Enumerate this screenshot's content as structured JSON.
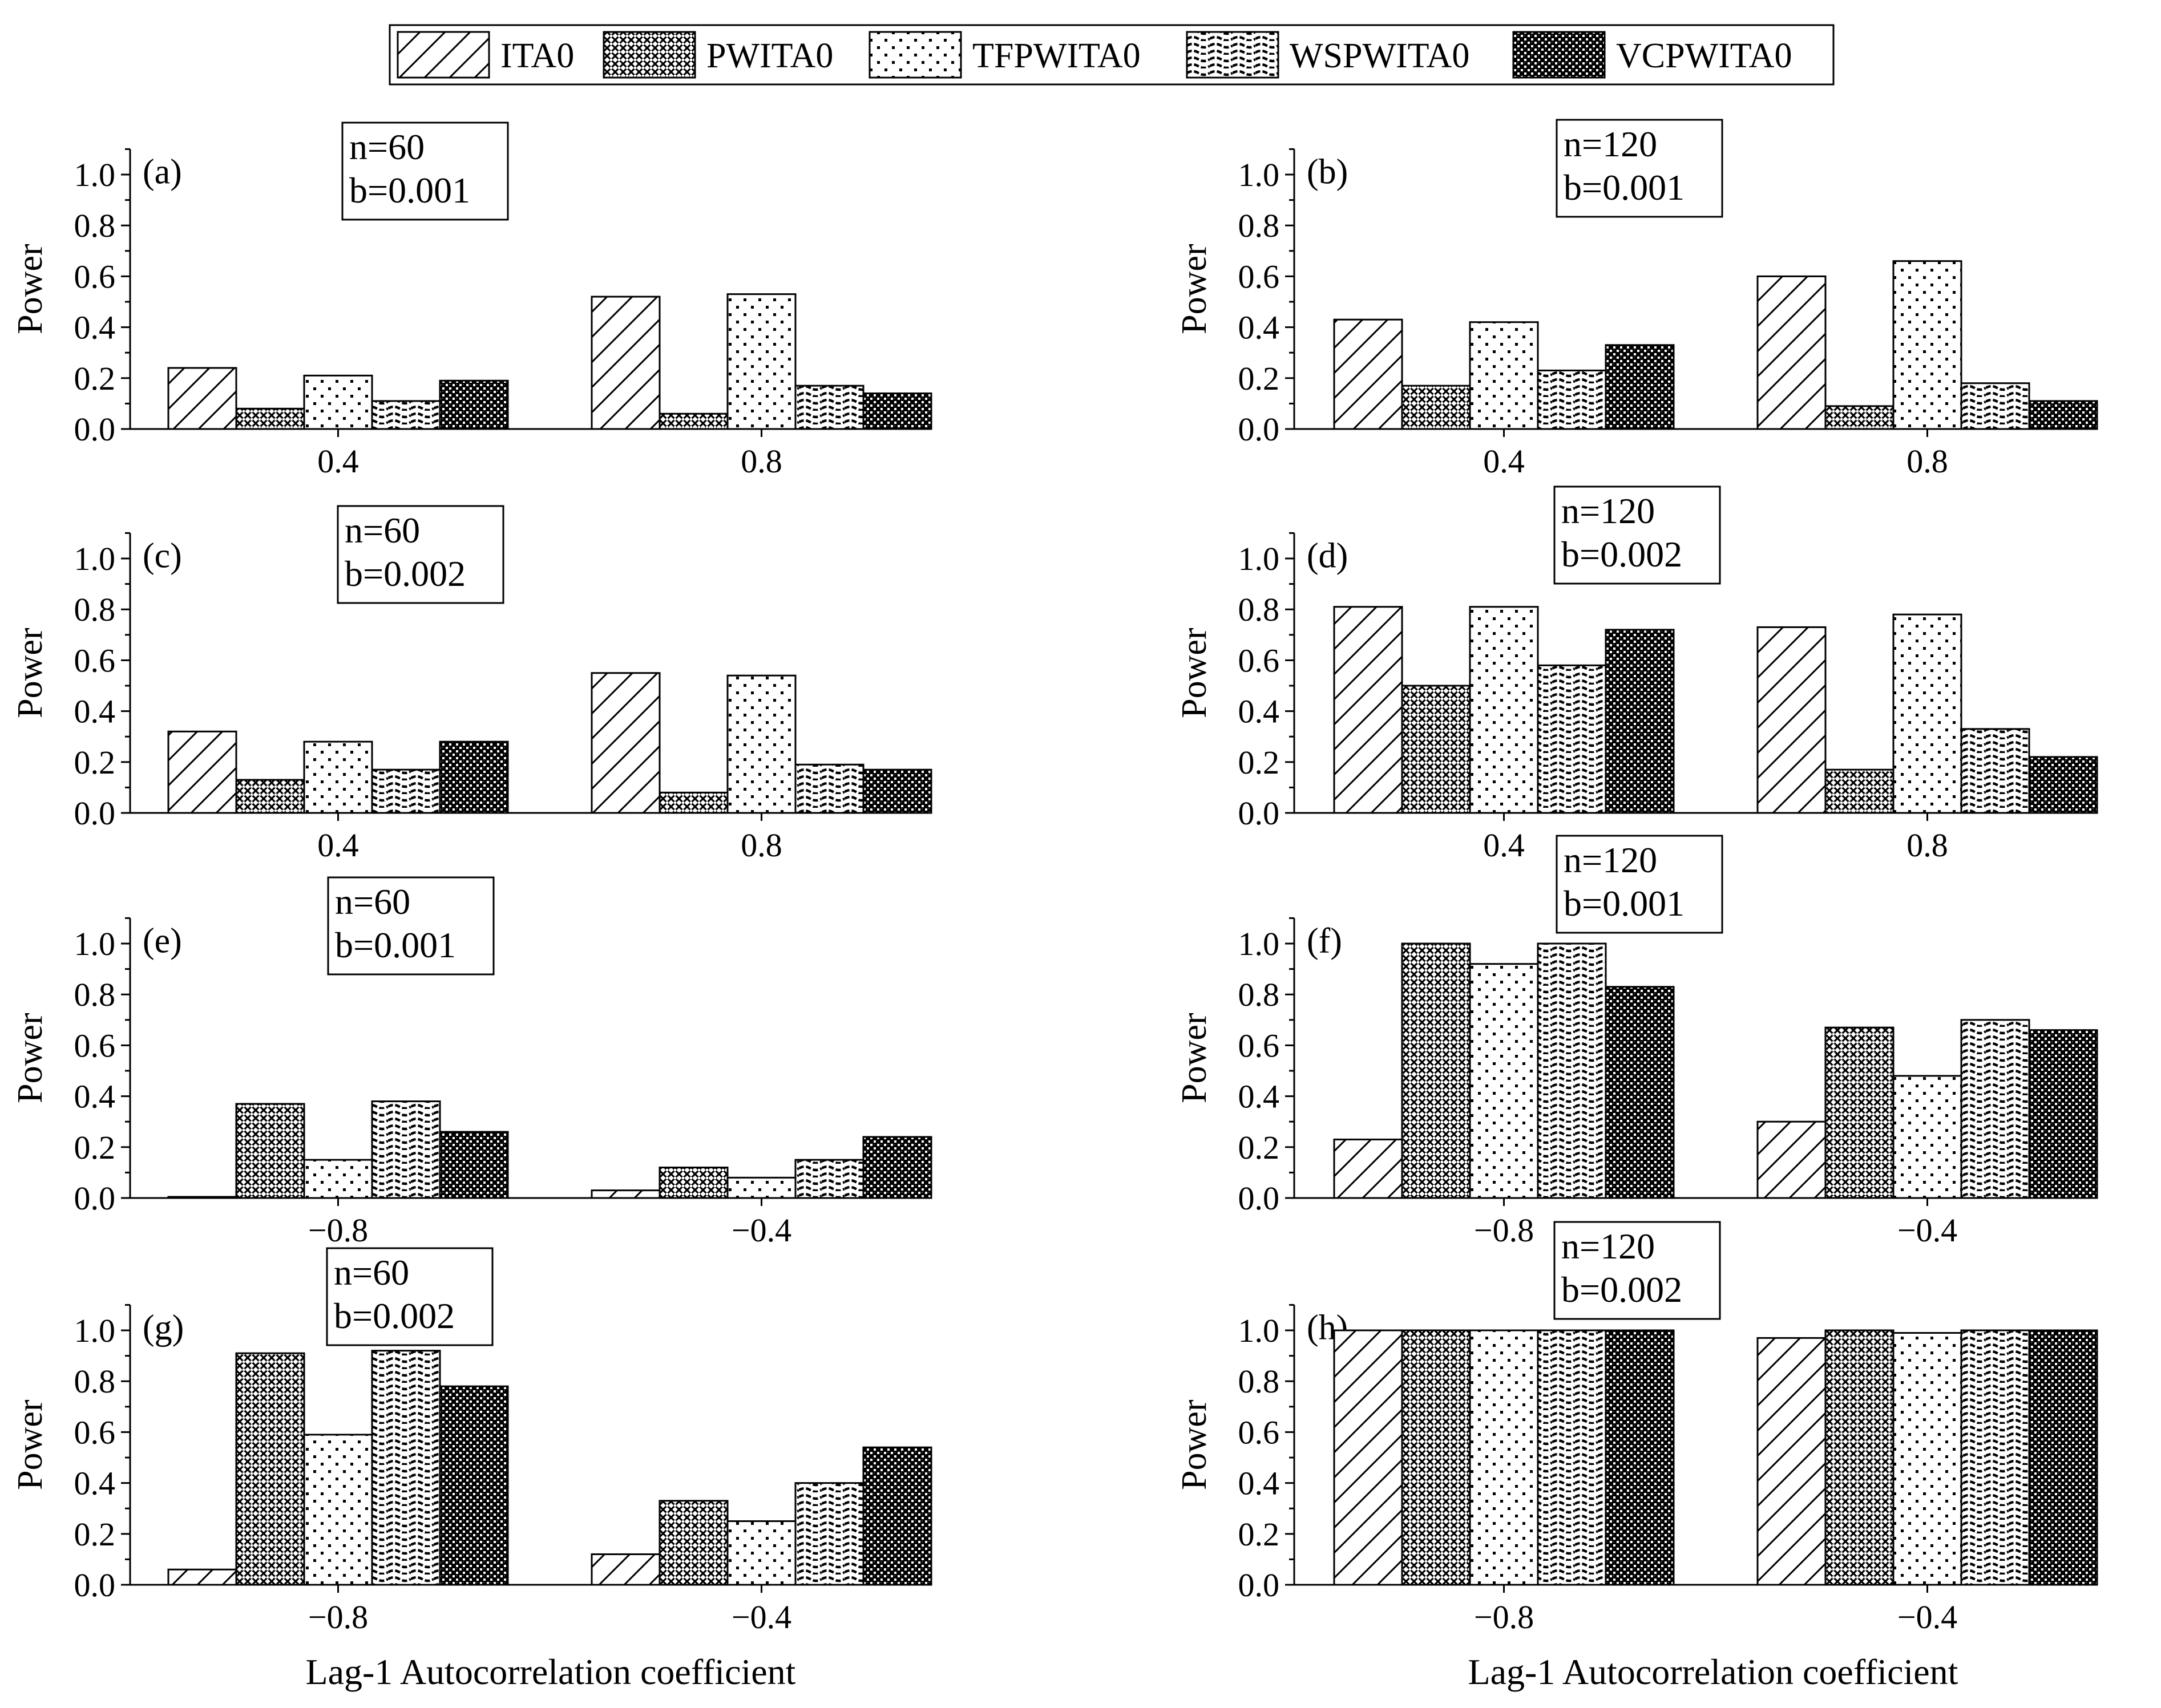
{
  "figure": {
    "legend": [
      {
        "name": "ITA0",
        "pattern": "hatch"
      },
      {
        "name": "PWITA0",
        "pattern": "dense"
      },
      {
        "name": "TFPWITA0",
        "pattern": "dots"
      },
      {
        "name": "WSPWITA0",
        "pattern": "waves"
      },
      {
        "name": "VCPWITA0",
        "pattern": "check"
      }
    ],
    "x_axis_title": "Lag-1 Autocorrelation coefficient",
    "y_axis_title": "Power",
    "colors": {
      "stroke": "#000000",
      "background": "#ffffff"
    }
  },
  "chart_data": [
    {
      "panel": "(a)",
      "type": "bar",
      "info": [
        "n=60",
        "b=0.001"
      ],
      "categories": [
        "0.4",
        "0.8"
      ],
      "ylim": [
        0,
        1.1
      ],
      "yticks": [
        "0.0",
        "0.2",
        "0.4",
        "0.6",
        "0.8",
        "1.0"
      ],
      "ylabel": "Power",
      "series": [
        {
          "name": "ITA0",
          "values": [
            0.24,
            0.52
          ]
        },
        {
          "name": "PWITA0",
          "values": [
            0.08,
            0.06
          ]
        },
        {
          "name": "TFPWITA0",
          "values": [
            0.21,
            0.53
          ]
        },
        {
          "name": "WSPWITA0",
          "values": [
            0.11,
            0.17
          ]
        },
        {
          "name": "VCPWITA0",
          "values": [
            0.19,
            0.14
          ]
        }
      ]
    },
    {
      "panel": "(b)",
      "type": "bar",
      "info": [
        "n=120",
        "b=0.001"
      ],
      "categories": [
        "0.4",
        "0.8"
      ],
      "ylim": [
        0,
        1.1
      ],
      "yticks": [
        "0.0",
        "0.2",
        "0.4",
        "0.6",
        "0.8",
        "1.0"
      ],
      "ylabel": "Power",
      "series": [
        {
          "name": "ITA0",
          "values": [
            0.43,
            0.6
          ]
        },
        {
          "name": "PWITA0",
          "values": [
            0.17,
            0.09
          ]
        },
        {
          "name": "TFPWITA0",
          "values": [
            0.42,
            0.66
          ]
        },
        {
          "name": "WSPWITA0",
          "values": [
            0.23,
            0.18
          ]
        },
        {
          "name": "VCPWITA0",
          "values": [
            0.33,
            0.11
          ]
        }
      ]
    },
    {
      "panel": "(c)",
      "type": "bar",
      "info": [
        "n=60",
        "b=0.002"
      ],
      "categories": [
        "0.4",
        "0.8"
      ],
      "ylim": [
        0,
        1.1
      ],
      "yticks": [
        "0.0",
        "0.2",
        "0.4",
        "0.6",
        "0.8",
        "1.0"
      ],
      "ylabel": "Power",
      "series": [
        {
          "name": "ITA0",
          "values": [
            0.32,
            0.55
          ]
        },
        {
          "name": "PWITA0",
          "values": [
            0.13,
            0.08
          ]
        },
        {
          "name": "TFPWITA0",
          "values": [
            0.28,
            0.54
          ]
        },
        {
          "name": "WSPWITA0",
          "values": [
            0.17,
            0.19
          ]
        },
        {
          "name": "VCPWITA0",
          "values": [
            0.28,
            0.17
          ]
        }
      ]
    },
    {
      "panel": "(d)",
      "type": "bar",
      "info": [
        "n=120",
        "b=0.002"
      ],
      "categories": [
        "0.4",
        "0.8"
      ],
      "ylim": [
        0,
        1.1
      ],
      "yticks": [
        "0.0",
        "0.2",
        "0.4",
        "0.6",
        "0.8",
        "1.0"
      ],
      "ylabel": "Power",
      "series": [
        {
          "name": "ITA0",
          "values": [
            0.81,
            0.73
          ]
        },
        {
          "name": "PWITA0",
          "values": [
            0.5,
            0.17
          ]
        },
        {
          "name": "TFPWITA0",
          "values": [
            0.81,
            0.78
          ]
        },
        {
          "name": "WSPWITA0",
          "values": [
            0.58,
            0.33
          ]
        },
        {
          "name": "VCPWITA0",
          "values": [
            0.72,
            0.22
          ]
        }
      ]
    },
    {
      "panel": "(e)",
      "type": "bar",
      "info": [
        "n=60",
        "b=0.001"
      ],
      "categories": [
        "−0.8",
        "−0.4"
      ],
      "ylim": [
        0,
        1.1
      ],
      "yticks": [
        "0.0",
        "0.2",
        "0.4",
        "0.6",
        "0.8",
        "1.0"
      ],
      "ylabel": "Power",
      "series": [
        {
          "name": "ITA0",
          "values": [
            0.003,
            0.03
          ]
        },
        {
          "name": "PWITA0",
          "values": [
            0.37,
            0.12
          ]
        },
        {
          "name": "TFPWITA0",
          "values": [
            0.15,
            0.08
          ]
        },
        {
          "name": "WSPWITA0",
          "values": [
            0.38,
            0.15
          ]
        },
        {
          "name": "VCPWITA0",
          "values": [
            0.26,
            0.24
          ]
        }
      ]
    },
    {
      "panel": "(f)",
      "type": "bar",
      "info": [
        "n=120",
        "b=0.001"
      ],
      "categories": [
        "−0.8",
        "−0.4"
      ],
      "ylim": [
        0,
        1.1
      ],
      "yticks": [
        "0.0",
        "0.2",
        "0.4",
        "0.6",
        "0.8",
        "1.0"
      ],
      "ylabel": "Power",
      "series": [
        {
          "name": "ITA0",
          "values": [
            0.23,
            0.3
          ]
        },
        {
          "name": "PWITA0",
          "values": [
            1.0,
            0.67
          ]
        },
        {
          "name": "TFPWITA0",
          "values": [
            0.92,
            0.48
          ]
        },
        {
          "name": "WSPWITA0",
          "values": [
            1.0,
            0.7
          ]
        },
        {
          "name": "VCPWITA0",
          "values": [
            0.83,
            0.66
          ]
        }
      ]
    },
    {
      "panel": "(g)",
      "type": "bar",
      "info": [
        "n=60",
        "b=0.002"
      ],
      "categories": [
        "−0.8",
        "−0.4"
      ],
      "ylim": [
        0,
        1.1
      ],
      "yticks": [
        "0.0",
        "0.2",
        "0.4",
        "0.6",
        "0.8",
        "1.0"
      ],
      "ylabel": "Power",
      "xlabel": "Lag-1 Autocorrelation coefficient",
      "series": [
        {
          "name": "ITA0",
          "values": [
            0.06,
            0.12
          ]
        },
        {
          "name": "PWITA0",
          "values": [
            0.91,
            0.33
          ]
        },
        {
          "name": "TFPWITA0",
          "values": [
            0.59,
            0.25
          ]
        },
        {
          "name": "WSPWITA0",
          "values": [
            0.92,
            0.4
          ]
        },
        {
          "name": "VCPWITA0",
          "values": [
            0.78,
            0.54
          ]
        }
      ]
    },
    {
      "panel": "(h)",
      "type": "bar",
      "info": [
        "n=120",
        "b=0.002"
      ],
      "categories": [
        "−0.8",
        "−0.4"
      ],
      "ylim": [
        0,
        1.1
      ],
      "yticks": [
        "0.0",
        "0.2",
        "0.4",
        "0.6",
        "0.8",
        "1.0"
      ],
      "ylabel": "Power",
      "xlabel": "Lag-1 Autocorrelation coefficient",
      "series": [
        {
          "name": "ITA0",
          "values": [
            1.0,
            0.97
          ]
        },
        {
          "name": "PWITA0",
          "values": [
            1.0,
            1.0
          ]
        },
        {
          "name": "TFPWITA0",
          "values": [
            1.0,
            0.99
          ]
        },
        {
          "name": "WSPWITA0",
          "values": [
            1.0,
            1.0
          ]
        },
        {
          "name": "VCPWITA0",
          "values": [
            1.0,
            1.0
          ]
        }
      ]
    }
  ]
}
